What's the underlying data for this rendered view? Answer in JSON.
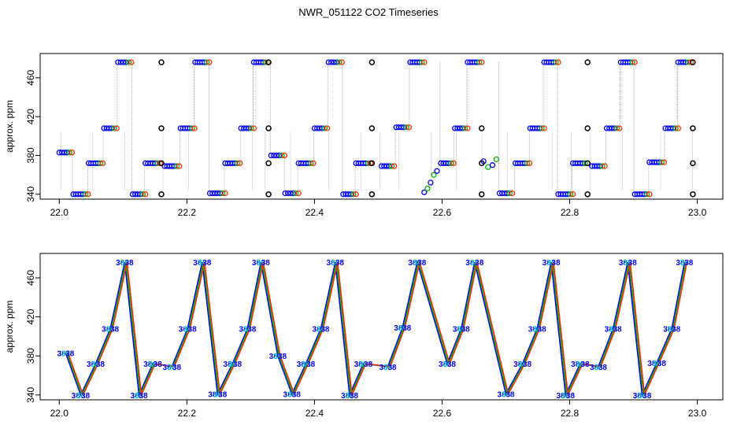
{
  "title": "NWR_051122  CO2 Timeseries",
  "colors": {
    "frame": "#000000",
    "vline": "#9a9a9a",
    "blue": "#0000ff",
    "red": "#ff2a00",
    "green": "#00b400",
    "black": "#000000",
    "cyan": "#00c8c8"
  },
  "chart_data": [
    {
      "type": "scatter",
      "ylabel": "approx. ppm",
      "xlabel": "",
      "xlim": [
        21.97,
        23.04
      ],
      "ylim": [
        335,
        485
      ],
      "xticks": [
        "22.0",
        "22.2",
        "22.4",
        "22.6",
        "22.8",
        "23.0"
      ],
      "yticks": [
        "340",
        "380",
        "420",
        "460"
      ],
      "plateaus": [
        {
          "x0": 22.0,
          "x1": 22.02,
          "y": 383
        },
        {
          "x0": 22.022,
          "x1": 22.045,
          "y": 340
        },
        {
          "x0": 22.046,
          "x1": 22.068,
          "y": 372
        },
        {
          "x0": 22.07,
          "x1": 22.09,
          "y": 408
        },
        {
          "x0": 22.092,
          "x1": 22.113,
          "y": 476
        },
        {
          "x0": 22.115,
          "x1": 22.135,
          "y": 340
        },
        {
          "x0": 22.135,
          "x1": 22.158,
          "y": 372
        },
        {
          "x0": 22.165,
          "x1": 22.188,
          "y": 369
        },
        {
          "x0": 22.19,
          "x1": 22.212,
          "y": 408
        },
        {
          "x0": 22.213,
          "x1": 22.235,
          "y": 476
        },
        {
          "x0": 22.236,
          "x1": 22.26,
          "y": 341
        },
        {
          "x0": 22.26,
          "x1": 22.283,
          "y": 372
        },
        {
          "x0": 22.285,
          "x1": 22.305,
          "y": 408
        },
        {
          "x0": 22.305,
          "x1": 22.327,
          "y": 476
        },
        {
          "x0": 22.332,
          "x1": 22.353,
          "y": 380
        },
        {
          "x0": 22.354,
          "x1": 22.375,
          "y": 341
        },
        {
          "x0": 22.375,
          "x1": 22.398,
          "y": 372
        },
        {
          "x0": 22.4,
          "x1": 22.42,
          "y": 408
        },
        {
          "x0": 22.422,
          "x1": 22.443,
          "y": 476
        },
        {
          "x0": 22.445,
          "x1": 22.465,
          "y": 340
        },
        {
          "x0": 22.465,
          "x1": 22.488,
          "y": 372
        },
        {
          "x0": 22.505,
          "x1": 22.525,
          "y": 369
        },
        {
          "x0": 22.528,
          "x1": 22.548,
          "y": 409
        },
        {
          "x0": 22.55,
          "x1": 22.572,
          "y": 476
        },
        {
          "x0": 22.598,
          "x1": 22.618,
          "y": 372
        },
        {
          "x0": 22.62,
          "x1": 22.64,
          "y": 408
        },
        {
          "x0": 22.64,
          "x1": 22.662,
          "y": 476
        },
        {
          "x0": 22.69,
          "x1": 22.71,
          "y": 341
        },
        {
          "x0": 22.715,
          "x1": 22.737,
          "y": 372
        },
        {
          "x0": 22.738,
          "x1": 22.76,
          "y": 408
        },
        {
          "x0": 22.76,
          "x1": 22.782,
          "y": 476
        },
        {
          "x0": 22.782,
          "x1": 22.805,
          "y": 340
        },
        {
          "x0": 22.805,
          "x1": 22.828,
          "y": 372
        },
        {
          "x0": 22.835,
          "x1": 22.855,
          "y": 369
        },
        {
          "x0": 22.858,
          "x1": 22.878,
          "y": 408
        },
        {
          "x0": 22.88,
          "x1": 22.902,
          "y": 476
        },
        {
          "x0": 22.902,
          "x1": 22.925,
          "y": 340
        },
        {
          "x0": 22.925,
          "x1": 22.948,
          "y": 373
        },
        {
          "x0": 22.95,
          "x1": 22.97,
          "y": 408
        },
        {
          "x0": 22.97,
          "x1": 22.99,
          "y": 476
        }
      ],
      "flask_points": [
        {
          "x": 22.16,
          "y": 476
        },
        {
          "x": 22.16,
          "y": 408
        },
        {
          "x": 22.16,
          "y": 372
        },
        {
          "x": 22.16,
          "y": 340
        },
        {
          "x": 22.328,
          "y": 476
        },
        {
          "x": 22.328,
          "y": 408
        },
        {
          "x": 22.328,
          "y": 372
        },
        {
          "x": 22.328,
          "y": 340
        },
        {
          "x": 22.49,
          "y": 476
        },
        {
          "x": 22.49,
          "y": 408
        },
        {
          "x": 22.49,
          "y": 372
        },
        {
          "x": 22.49,
          "y": 340
        },
        {
          "x": 22.662,
          "y": 408
        },
        {
          "x": 22.662,
          "y": 372
        },
        {
          "x": 22.662,
          "y": 340
        },
        {
          "x": 22.828,
          "y": 476
        },
        {
          "x": 22.828,
          "y": 408
        },
        {
          "x": 22.828,
          "y": 372
        },
        {
          "x": 22.828,
          "y": 340
        },
        {
          "x": 22.993,
          "y": 476
        },
        {
          "x": 22.993,
          "y": 408
        },
        {
          "x": 22.993,
          "y": 372
        },
        {
          "x": 22.993,
          "y": 340
        }
      ],
      "ramps": [
        {
          "x": [
            22.572,
            22.577,
            22.582,
            22.587,
            22.592
          ],
          "y": [
            342,
            346,
            352,
            360,
            364
          ]
        },
        {
          "x": [
            22.665,
            22.672,
            22.679,
            22.685
          ],
          "y": [
            374,
            368,
            370,
            376
          ]
        }
      ]
    },
    {
      "type": "line",
      "ylabel": "approx. ppm",
      "xlabel": "",
      "xlim": [
        21.97,
        23.04
      ],
      "ylim": [
        335,
        485
      ],
      "xticks": [
        "22.0",
        "22.2",
        "22.4",
        "22.6",
        "22.8",
        "23.0"
      ],
      "yticks": [
        "340",
        "380",
        "420",
        "460"
      ],
      "label_glyph": "38"
    }
  ]
}
